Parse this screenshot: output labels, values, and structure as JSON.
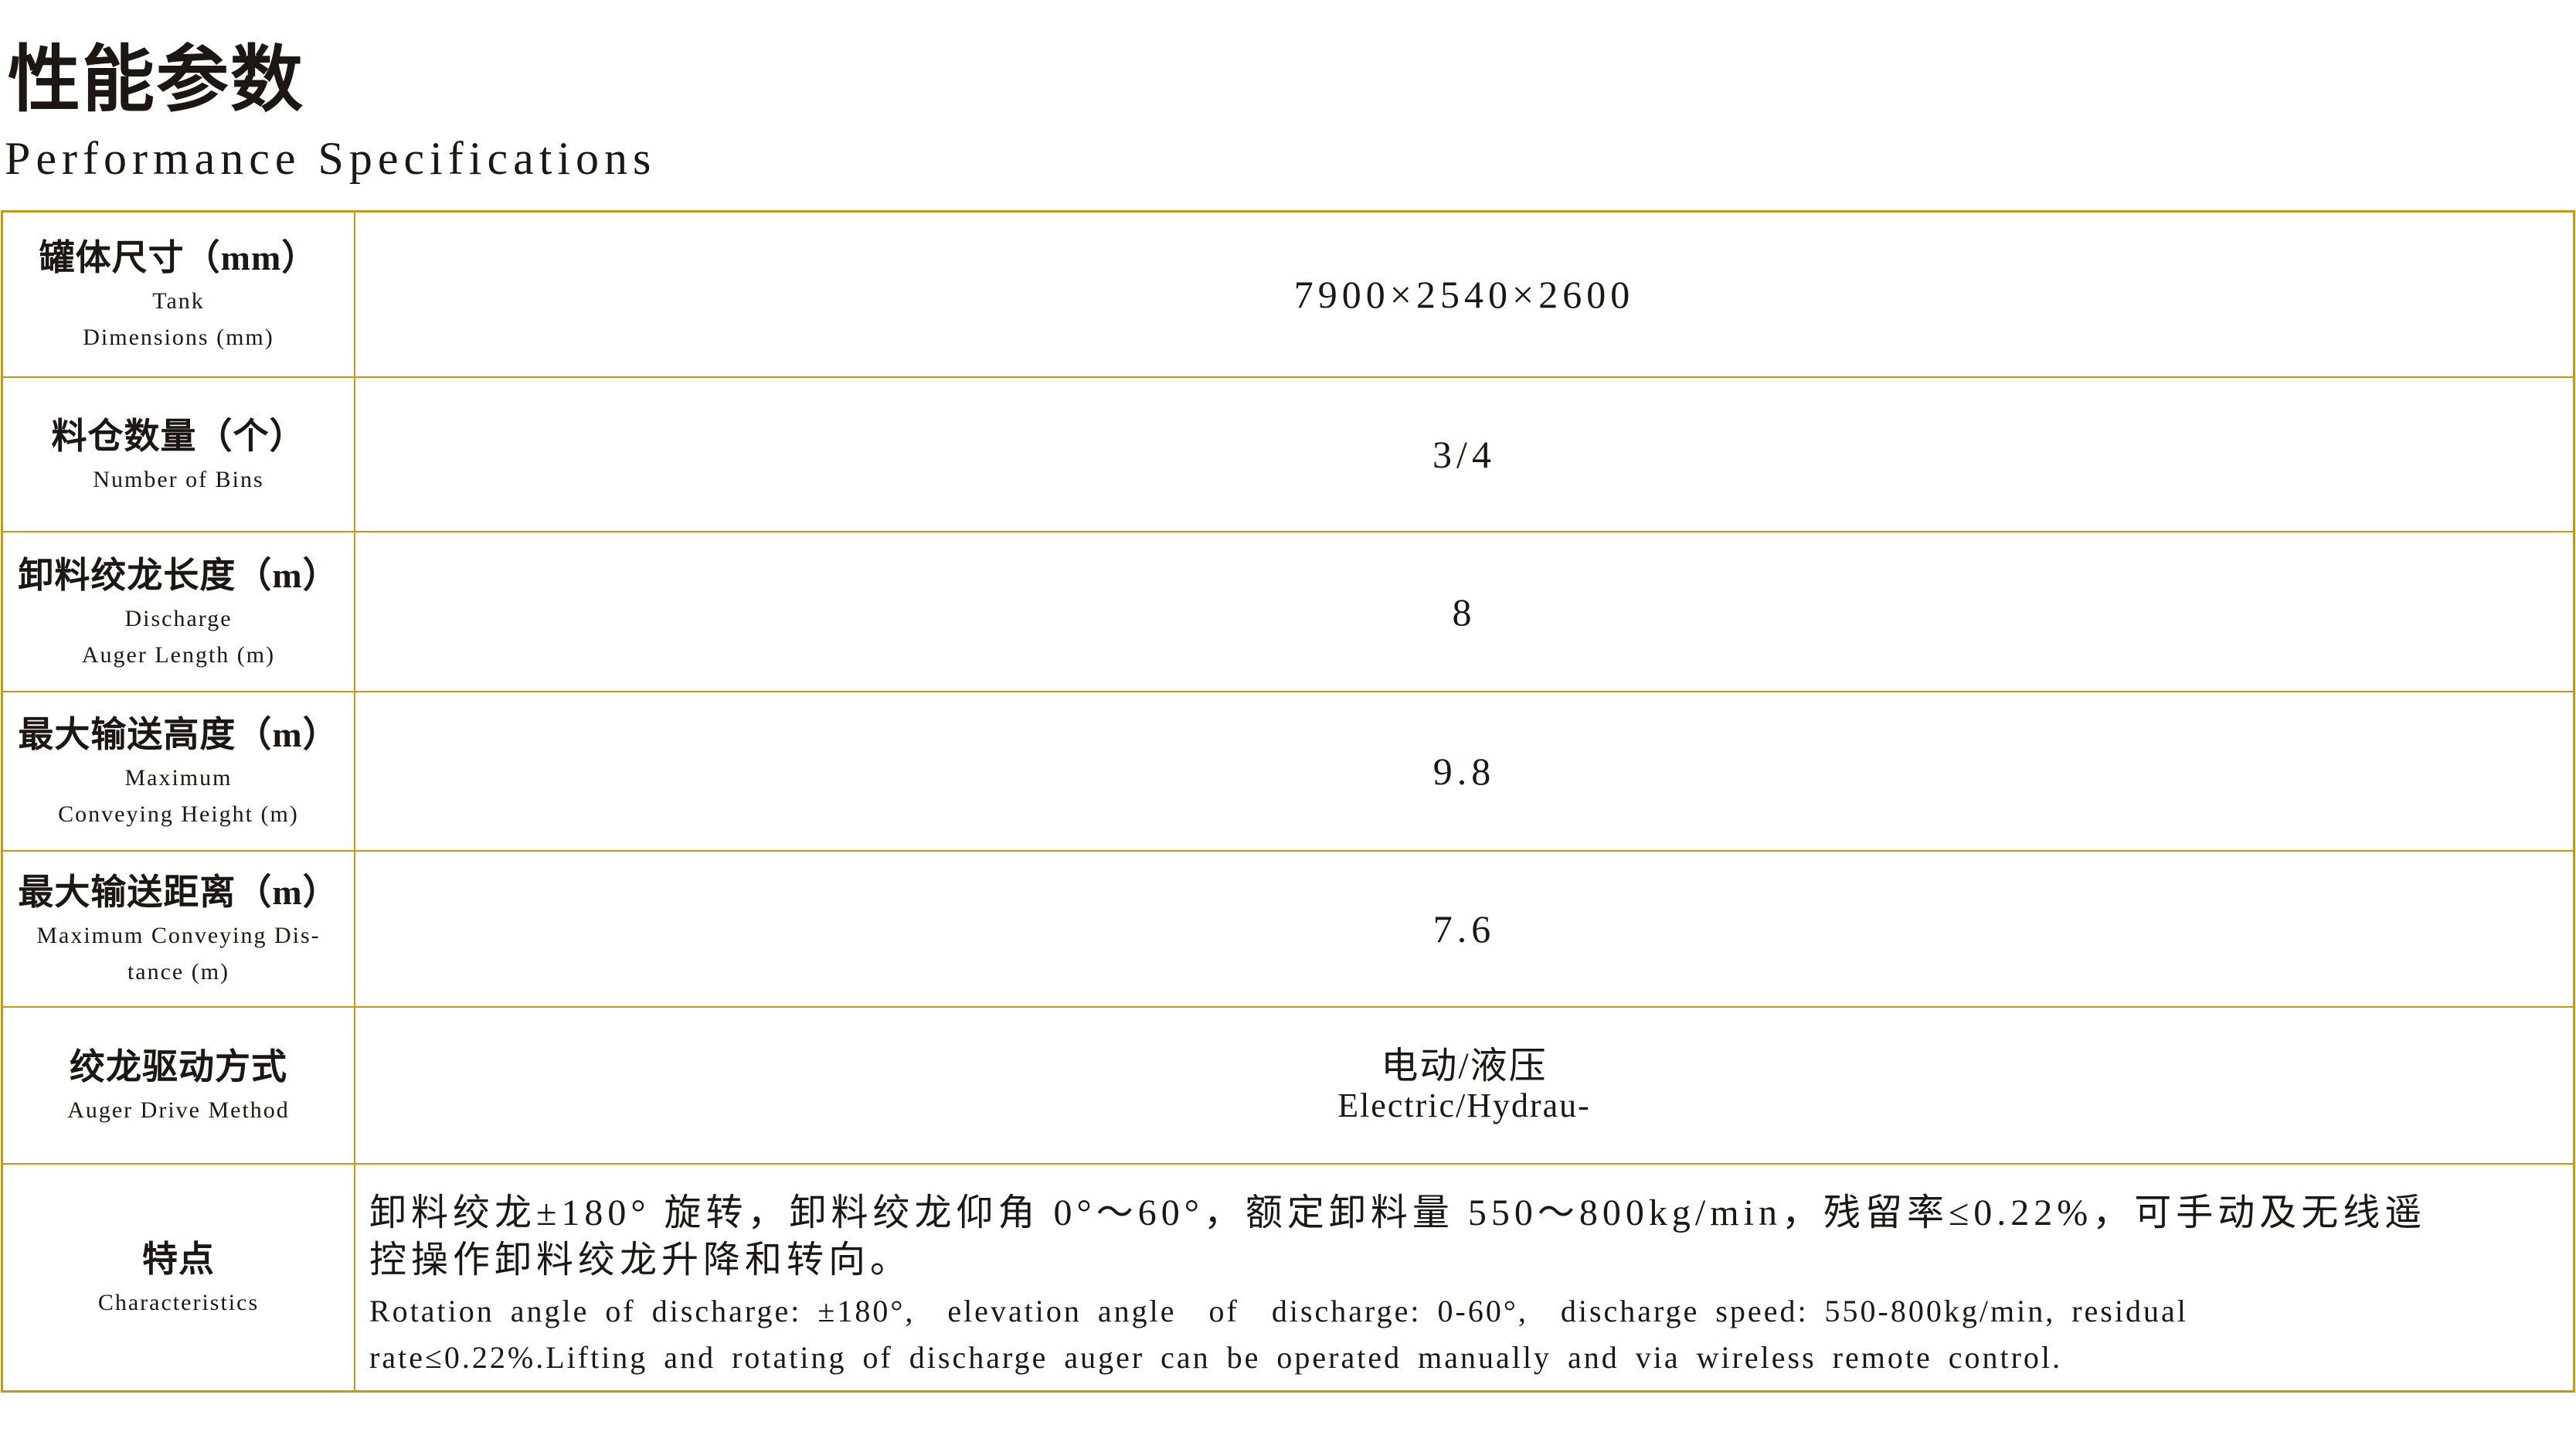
{
  "page": {
    "title_zh": "性能参数",
    "title_en": "Performance Specifications"
  },
  "table": {
    "border_color": "#C7990F",
    "rows": [
      {
        "label_zh": "罐体尺寸（mm）",
        "label_en": "Tank\nDimensions (mm)",
        "value": "7900×2540×2600"
      },
      {
        "label_zh": "料仓数量（个）",
        "label_en": "Number of Bins",
        "value": "3/4"
      },
      {
        "label_zh": "卸料绞龙长度（m）",
        "label_en": "Discharge\nAuger Length (m)",
        "value": "8"
      },
      {
        "label_zh": "最大输送高度（m）",
        "label_en": "Maximum\nConveying Height (m)",
        "value": "9.8"
      },
      {
        "label_zh": "最大输送距离（m）",
        "label_en": "Maximum Conveying Dis-\ntance (m)",
        "value": "7.6"
      },
      {
        "label_zh": "绞龙驱动方式",
        "label_en": "Auger Drive Method",
        "value_zh": "电动/液压",
        "value_en": "Electric/Hydrau-"
      },
      {
        "label_zh": "特点",
        "label_en": "Characteristics",
        "value_zh": "卸料绞龙±180° 旋转，卸料绞龙仰角 0°～60°，额定卸料量 550～800kg/min，残留率≤0.22%，可手动及无线遥\n控操作卸料绞龙升降和转向。",
        "value_en": "Rotation angle of discharge: ±180°,  elevation angle  of  discharge: 0-60°,  discharge speed: 550-800kg/min, residual\nrate≤0.22%.Lifting and rotating of discharge auger can be operated manually and via wireless remote control."
      }
    ]
  }
}
